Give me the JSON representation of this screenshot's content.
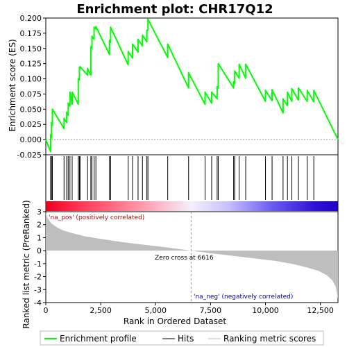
{
  "chart_data": {
    "type": "line",
    "title": "Enrichment plot: CHR17Q12",
    "xlabel": "Rank in Ordered Dataset",
    "panels": {
      "es": {
        "ylabel": "Enrichment score (ES)",
        "ylim": [
          -0.025,
          0.2
        ],
        "yticks": [
          -0.025,
          0.0,
          0.025,
          0.05,
          0.075,
          0.1,
          0.125,
          0.15,
          0.175,
          0.2
        ],
        "ytick_labels": [
          "-0.025",
          "0.000",
          "0.025",
          "0.050",
          "0.075",
          "0.100",
          "0.125",
          "0.150",
          "0.175",
          "0.200"
        ]
      },
      "ranked": {
        "ylabel": "Ranked list metric (PreRanked)",
        "ylim": [
          -4,
          3
        ],
        "yticks": [
          3,
          2,
          1,
          0,
          -1,
          -2,
          -3,
          -4
        ],
        "ytick_labels": [
          "3",
          "2",
          "1",
          "0",
          "-1",
          "-2",
          "-3",
          "-4"
        ]
      }
    },
    "xlim": [
      0,
      13300
    ],
    "xticks": [
      0,
      2500,
      5000,
      7500,
      10000,
      12500
    ],
    "xtick_labels": [
      "0",
      "2,500",
      "5,000",
      "7,500",
      "10,000",
      "12,500"
    ],
    "hits": [
      220,
      260,
      300,
      830,
      950,
      1020,
      1100,
      1200,
      1480,
      1530,
      1560,
      1900,
      2050,
      2100,
      2200,
      2280,
      2900,
      2950,
      3750,
      3950,
      4200,
      4400,
      4600,
      4650,
      5550,
      6500,
      7250,
      7550,
      7800,
      7850,
      8550,
      8600,
      8800,
      9100,
      10000,
      10300,
      10800,
      11000,
      11200,
      11500,
      11900,
      12200
    ],
    "series": [
      {
        "name": "Enrichment profile",
        "color": "#00ff00",
        "x": [
          0,
          220,
          220,
          260,
          260,
          300,
          300,
          830,
          830,
          950,
          950,
          1020,
          1020,
          1100,
          1100,
          1200,
          1200,
          1480,
          1480,
          1530,
          1530,
          1560,
          1560,
          1900,
          1900,
          2050,
          2050,
          2100,
          2100,
          2200,
          2200,
          2280,
          2280,
          2900,
          2900,
          2950,
          2950,
          3750,
          3750,
          3950,
          3950,
          4200,
          4200,
          4400,
          4400,
          4600,
          4600,
          4650,
          4650,
          5550,
          5550,
          6500,
          6500,
          7250,
          7250,
          7550,
          7550,
          7800,
          7800,
          7850,
          7850,
          8550,
          8550,
          8600,
          8600,
          8800,
          8800,
          9100,
          9100,
          10000,
          10000,
          10300,
          10300,
          10800,
          10800,
          11000,
          11000,
          11200,
          11200,
          11500,
          11500,
          11900,
          11900,
          12200,
          12200,
          13300
        ],
        "values": [
          0.0,
          -0.02,
          0.008,
          0.003,
          0.028,
          0.023,
          0.05,
          0.018,
          0.035,
          0.028,
          0.045,
          0.04,
          0.06,
          0.055,
          0.078,
          0.058,
          0.078,
          0.058,
          0.1,
          0.098,
          0.119,
          0.117,
          0.12,
          0.106,
          0.117,
          0.106,
          0.153,
          0.15,
          0.17,
          0.165,
          0.185,
          0.182,
          0.186,
          0.14,
          0.163,
          0.16,
          0.185,
          0.123,
          0.145,
          0.134,
          0.157,
          0.144,
          0.165,
          0.154,
          0.172,
          0.161,
          0.18,
          0.18,
          0.198,
          0.135,
          0.157,
          0.085,
          0.11,
          0.058,
          0.078,
          0.06,
          0.078,
          0.067,
          0.087,
          0.085,
          0.125,
          0.085,
          0.095,
          0.092,
          0.113,
          0.101,
          0.124,
          0.101,
          0.124,
          0.063,
          0.081,
          0.064,
          0.082,
          0.044,
          0.067,
          0.056,
          0.078,
          0.063,
          0.084,
          0.065,
          0.085,
          0.063,
          0.081,
          0.062,
          0.081,
          0.0
        ]
      }
    ],
    "ranked_metric": {
      "x": [
        0,
        80,
        250,
        500,
        800,
        1200,
        1800,
        2500,
        3500,
        4500,
        5500,
        6616,
        7500,
        8500,
        9500,
        10500,
        11300,
        11900,
        12400,
        12800,
        13050,
        13200,
        13300
      ],
      "values": [
        2.9,
        2.5,
        2.1,
        1.8,
        1.55,
        1.35,
        1.1,
        0.9,
        0.65,
        0.45,
        0.25,
        0.0,
        -0.2,
        -0.4,
        -0.6,
        -0.8,
        -1.05,
        -1.3,
        -1.55,
        -1.9,
        -2.3,
        -2.8,
        -3.7
      ],
      "zero_cross_label": "Zero cross at 6616",
      "zero_cross_x": 6616,
      "pos_label": "'na_pos' (positively correlated)",
      "neg_label": "'na_neg' (negatively correlated)"
    },
    "colorbar_stops": [
      {
        "x": 0,
        "color": "#e8001e"
      },
      {
        "x": 1200,
        "color": "#ff2a4a"
      },
      {
        "x": 3500,
        "color": "#ff7a8e"
      },
      {
        "x": 5200,
        "color": "#ffb8cc"
      },
      {
        "x": 6616,
        "color": "#f4f0fb"
      },
      {
        "x": 8300,
        "color": "#c8c0ff"
      },
      {
        "x": 10300,
        "color": "#6a5cf0"
      },
      {
        "x": 12300,
        "color": "#2c10d4"
      },
      {
        "x": 13300,
        "color": "#2000c8"
      }
    ],
    "grid": false,
    "legend": {
      "placement": "bottom",
      "entries": [
        {
          "label": "Enrichment profile",
          "color": "#00ff00",
          "kind": "thick-line"
        },
        {
          "label": "Hits",
          "color": "#000000",
          "kind": "line"
        },
        {
          "label": "Ranking metric scores",
          "color": "#bebebe",
          "kind": "line"
        }
      ]
    }
  }
}
